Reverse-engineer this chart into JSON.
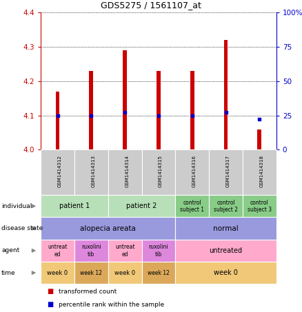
{
  "title": "GDS5275 / 1561107_at",
  "samples": [
    "GSM1414312",
    "GSM1414313",
    "GSM1414314",
    "GSM1414315",
    "GSM1414316",
    "GSM1414317",
    "GSM1414318"
  ],
  "red_values": [
    4.17,
    4.23,
    4.29,
    4.23,
    4.23,
    4.32,
    4.06
  ],
  "blue_values": [
    4.1,
    4.1,
    4.11,
    4.1,
    4.1,
    4.11,
    4.09
  ],
  "ylim_left": [
    4.0,
    4.4
  ],
  "ylim_right": [
    0,
    100
  ],
  "yticks_left": [
    4.0,
    4.1,
    4.2,
    4.3,
    4.4
  ],
  "yticks_right": [
    0,
    25,
    50,
    75,
    100
  ],
  "ytick_labels_right": [
    "0",
    "25",
    "50",
    "75",
    "100%"
  ],
  "bar_color": "#cc0000",
  "dot_color": "#0000cc",
  "left_axis_color": "#cc0000",
  "right_axis_color": "#0000cc",
  "rows": [
    {
      "label": "individual",
      "cells": [
        {
          "text": "patient 1",
          "span": 2,
          "color": "#b8e0b8",
          "fontsize": 7
        },
        {
          "text": "patient 2",
          "span": 2,
          "color": "#b8e0b8",
          "fontsize": 7
        },
        {
          "text": "control\nsubject 1",
          "span": 1,
          "color": "#88cc88",
          "fontsize": 5.5
        },
        {
          "text": "control\nsubject 2",
          "span": 1,
          "color": "#88cc88",
          "fontsize": 5.5
        },
        {
          "text": "control\nsubject 3",
          "span": 1,
          "color": "#88cc88",
          "fontsize": 5.5
        }
      ]
    },
    {
      "label": "disease state",
      "cells": [
        {
          "text": "alopecia areata",
          "span": 4,
          "color": "#9999dd",
          "fontsize": 7.5
        },
        {
          "text": "normal",
          "span": 3,
          "color": "#9999dd",
          "fontsize": 7.5
        }
      ]
    },
    {
      "label": "agent",
      "cells": [
        {
          "text": "untreat\ned",
          "span": 1,
          "color": "#ffaacc",
          "fontsize": 5.5
        },
        {
          "text": "ruxolini\ntib",
          "span": 1,
          "color": "#dd88dd",
          "fontsize": 5.5
        },
        {
          "text": "untreat\ned",
          "span": 1,
          "color": "#ffaacc",
          "fontsize": 5.5
        },
        {
          "text": "ruxolini\ntib",
          "span": 1,
          "color": "#dd88dd",
          "fontsize": 5.5
        },
        {
          "text": "untreated",
          "span": 3,
          "color": "#ffaacc",
          "fontsize": 7
        }
      ]
    },
    {
      "label": "time",
      "cells": [
        {
          "text": "week 0",
          "span": 1,
          "color": "#f0c878",
          "fontsize": 6
        },
        {
          "text": "week 12",
          "span": 1,
          "color": "#dba85a",
          "fontsize": 5.5
        },
        {
          "text": "week 0",
          "span": 1,
          "color": "#f0c878",
          "fontsize": 6
        },
        {
          "text": "week 12",
          "span": 1,
          "color": "#dba85a",
          "fontsize": 5.5
        },
        {
          "text": "week 0",
          "span": 3,
          "color": "#f0c878",
          "fontsize": 7
        }
      ]
    }
  ],
  "legend_items": [
    {
      "color": "#cc0000",
      "label": "transformed count"
    },
    {
      "color": "#0000cc",
      "label": "percentile rank within the sample"
    }
  ]
}
